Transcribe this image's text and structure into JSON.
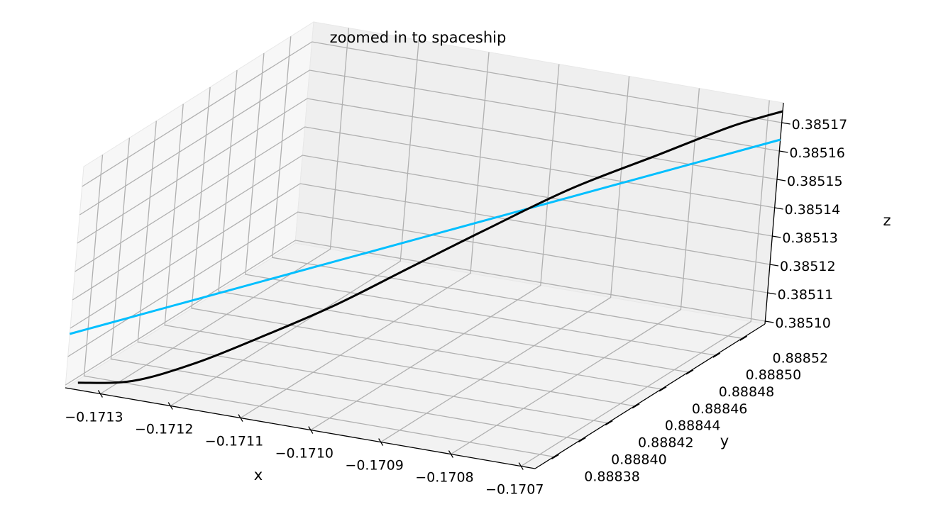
{
  "chart_data": {
    "type": "line",
    "projection": "3d",
    "title": "zoomed in to spaceship",
    "xlabel": "x",
    "ylabel": "y",
    "zlabel": "z",
    "xlim": [
      -0.17135,
      -0.17068
    ],
    "ylim": [
      0.888366,
      0.888537
    ],
    "zlim": [
      0.385099,
      0.385177
    ],
    "grid": true,
    "x_ticks": [
      "−0.1713",
      "−0.1712",
      "−0.1711",
      "−0.1710",
      "−0.1709",
      "−0.1708",
      "−0.1707"
    ],
    "y_ticks": [
      "0.88838",
      "0.88840",
      "0.88842",
      "0.88844",
      "0.88846",
      "0.88848",
      "0.88850",
      "0.88852"
    ],
    "z_ticks": [
      "0.38510",
      "0.38511",
      "0.38512",
      "0.38513",
      "0.38514",
      "0.38515",
      "0.38516",
      "0.38517"
    ],
    "series": [
      {
        "color": "#00bfff",
        "points": [
          {
            "x": -0.17135,
            "y": 0.888366,
            "z": 0.385118
          },
          {
            "x": -0.17068,
            "y": 0.888537,
            "z": 0.385164
          }
        ]
      },
      {
        "color": "#000000",
        "points": [
          {
            "x": -0.17134,
            "y": 0.88837,
            "z": 0.3851
          },
          {
            "x": -0.171287,
            "y": 0.888383,
            "z": 0.385099
          },
          {
            "x": -0.17123,
            "y": 0.888398,
            "z": 0.385103
          },
          {
            "x": -0.17117,
            "y": 0.888413,
            "z": 0.38511
          },
          {
            "x": -0.1711,
            "y": 0.888431,
            "z": 0.385119
          },
          {
            "x": -0.17103,
            "y": 0.888449,
            "z": 0.38513
          },
          {
            "x": -0.17096,
            "y": 0.888467,
            "z": 0.385141
          },
          {
            "x": -0.17088,
            "y": 0.888487,
            "z": 0.385153
          },
          {
            "x": -0.1708,
            "y": 0.888508,
            "z": 0.385162
          },
          {
            "x": -0.17073,
            "y": 0.888525,
            "z": 0.38517
          },
          {
            "x": -0.17068,
            "y": 0.888537,
            "z": 0.385174
          }
        ]
      }
    ]
  }
}
